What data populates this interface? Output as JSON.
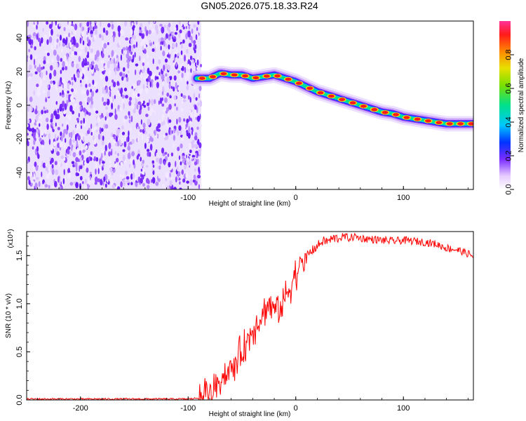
{
  "title": "GN05.2026.075.18.33.R24",
  "colors": {
    "trace": "#ff0000",
    "frame": "#000000",
    "noise": "#7a2cff"
  },
  "chart_data": [
    {
      "type": "heatmap",
      "xlabel": "Height of straight line (km)",
      "ylabel": "Frequency (Hz)",
      "xlim": [
        -250,
        165
      ],
      "ylim": [
        -50,
        50
      ],
      "xticks": [
        -200,
        -100,
        0,
        100
      ],
      "yticks": [
        40,
        20,
        0,
        -20,
        -40
      ],
      "noise_region_x": [
        -250,
        -88
      ],
      "colorbar": {
        "label": "Normalized spectral amplitude",
        "range": [
          0,
          1
        ],
        "ticks": [
          "0.0",
          "0.2",
          "0.4",
          "0.6",
          "0.8"
        ],
        "colormap": "rainbow"
      },
      "ridge": {
        "x": [
          -92,
          -80,
          -70,
          -60,
          -50,
          -40,
          -30,
          -20,
          -10,
          0,
          10,
          20,
          30,
          40,
          50,
          60,
          70,
          80,
          90,
          100,
          110,
          120,
          130,
          140,
          150,
          160,
          165
        ],
        "y": [
          16,
          16,
          19,
          18,
          18,
          16,
          17,
          18,
          16,
          14,
          11,
          8,
          6,
          4,
          2,
          0,
          -2,
          -4,
          -5,
          -7,
          -8,
          -9,
          -10,
          -11,
          -11,
          -11,
          -11
        ]
      }
    },
    {
      "type": "line",
      "xlabel": "Height of straight line (km)",
      "ylabel": "SNR (10 * v/v)",
      "y_multiplier": "(x10⁴)",
      "xlim": [
        -250,
        165
      ],
      "ylim": [
        0,
        1.75
      ],
      "xticks": [
        -200,
        -100,
        0,
        100
      ],
      "yticks": [
        "0.0",
        "0.5",
        "1.0",
        "1.5"
      ],
      "series": [
        {
          "x": [
            -250,
            -200,
            -150,
            -100,
            -90,
            -85,
            -80,
            -75,
            -70,
            -65,
            -60,
            -55,
            -50,
            -45,
            -40,
            -35,
            -30,
            -25,
            -20,
            -15,
            -10,
            -5,
            0,
            5,
            10,
            15,
            20,
            25,
            30,
            35,
            40,
            45,
            50,
            55,
            60,
            70,
            80,
            90,
            100,
            110,
            120,
            130,
            140,
            150,
            160,
            165
          ],
          "y": [
            0.01,
            0.01,
            0.01,
            0.01,
            0.02,
            0.05,
            0.1,
            0.15,
            0.22,
            0.28,
            0.3,
            0.42,
            0.5,
            0.6,
            0.75,
            0.82,
            0.9,
            1.0,
            0.95,
            0.95,
            1.05,
            1.2,
            1.3,
            1.4,
            1.5,
            1.55,
            1.6,
            1.65,
            1.65,
            1.68,
            1.68,
            1.7,
            1.68,
            1.7,
            1.68,
            1.67,
            1.66,
            1.65,
            1.66,
            1.65,
            1.64,
            1.62,
            1.58,
            1.56,
            1.52,
            1.49
          ]
        }
      ]
    }
  ]
}
